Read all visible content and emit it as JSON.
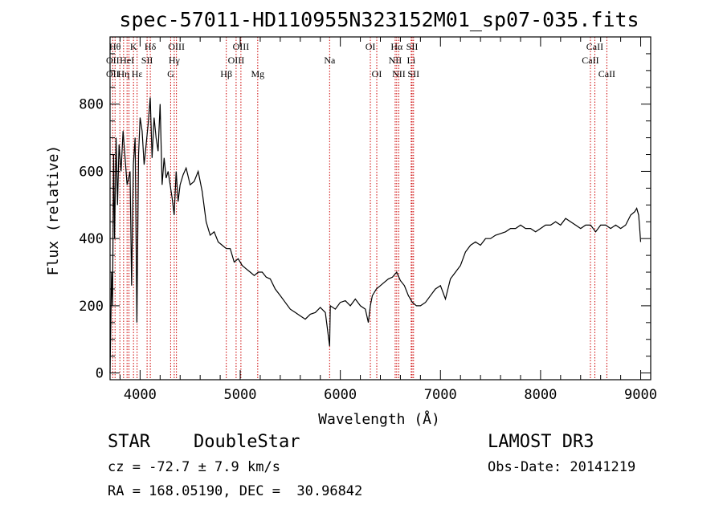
{
  "chart_data": {
    "type": "line",
    "title": "spec-57011-HD110955N323152M01_sp07-035.fits",
    "xlabel": "Wavelength (Å)",
    "ylabel": "Flux (relative)",
    "xlim": [
      3700,
      9100
    ],
    "ylim": [
      -20,
      1000
    ],
    "x_ticks": [
      4000,
      5000,
      6000,
      7000,
      8000,
      9000
    ],
    "y_ticks": [
      0,
      200,
      400,
      600,
      800
    ],
    "x_tick_labels": [
      "4000",
      "5000",
      "6000",
      "7000",
      "8000",
      "9000"
    ],
    "y_tick_labels": [
      "0",
      "200",
      "400",
      "600",
      "800"
    ],
    "grid": false,
    "series": [
      {
        "x": [
          3700,
          3715,
          3725,
          3735,
          3745,
          3760,
          3775,
          3790,
          3810,
          3830,
          3850,
          3870,
          3885,
          3900,
          3915,
          3933,
          3950,
          3968,
          3985,
          4000,
          4020,
          4040,
          4060,
          4080,
          4101,
          4120,
          4140,
          4160,
          4180,
          4200,
          4220,
          4240,
          4260,
          4280,
          4300,
          4320,
          4340,
          4360,
          4380,
          4400,
          4430,
          4460,
          4500,
          4540,
          4580,
          4620,
          4660,
          4700,
          4740,
          4780,
          4820,
          4861,
          4900,
          4940,
          4980,
          5020,
          5060,
          5100,
          5140,
          5180,
          5220,
          5260,
          5300,
          5350,
          5400,
          5450,
          5500,
          5550,
          5600,
          5650,
          5700,
          5750,
          5800,
          5850,
          5893,
          5900,
          5950,
          6000,
          6050,
          6100,
          6150,
          6200,
          6250,
          6280,
          6300,
          6320,
          6360,
          6400,
          6440,
          6480,
          6520,
          6563,
          6600,
          6640,
          6680,
          6720,
          6760,
          6800,
          6850,
          6900,
          6950,
          7000,
          7050,
          7100,
          7150,
          7200,
          7250,
          7300,
          7350,
          7400,
          7450,
          7500,
          7550,
          7600,
          7650,
          7700,
          7750,
          7800,
          7850,
          7900,
          7950,
          8000,
          8050,
          8100,
          8150,
          8200,
          8250,
          8300,
          8350,
          8400,
          8450,
          8500,
          8550,
          8600,
          8650,
          8700,
          8750,
          8800,
          8850,
          8900,
          8940,
          8960,
          8980,
          8990,
          9000
        ],
        "y": [
          0,
          300,
          200,
          650,
          400,
          700,
          500,
          680,
          600,
          720,
          640,
          560,
          580,
          600,
          260,
          620,
          700,
          150,
          650,
          760,
          720,
          620,
          680,
          740,
          820,
          640,
          760,
          700,
          660,
          800,
          560,
          640,
          580,
          600,
          560,
          520,
          470,
          600,
          510,
          560,
          590,
          610,
          560,
          570,
          600,
          540,
          450,
          410,
          420,
          390,
          380,
          370,
          370,
          330,
          340,
          320,
          310,
          300,
          290,
          300,
          300,
          285,
          280,
          250,
          230,
          210,
          190,
          180,
          170,
          160,
          175,
          180,
          195,
          180,
          80,
          200,
          190,
          210,
          215,
          200,
          220,
          200,
          190,
          150,
          200,
          230,
          250,
          260,
          270,
          280,
          285,
          300,
          275,
          260,
          230,
          210,
          200,
          200,
          210,
          230,
          250,
          260,
          220,
          280,
          300,
          320,
          360,
          380,
          390,
          380,
          400,
          400,
          410,
          415,
          420,
          430,
          430,
          440,
          430,
          430,
          420,
          430,
          440,
          440,
          450,
          440,
          460,
          450,
          440,
          430,
          440,
          440,
          420,
          440,
          440,
          430,
          440,
          430,
          440,
          470,
          480,
          490,
          470,
          430,
          390
        ]
      }
    ],
    "line_labels": [
      {
        "text": "Hθ",
        "x": 3750,
        "row": 1
      },
      {
        "text": "OII",
        "x": 3727,
        "row": 2
      },
      {
        "text": "OII",
        "x": 3727,
        "row": 3
      },
      {
        "text": "K",
        "x": 3934,
        "row": 1
      },
      {
        "text": "HeI",
        "x": 3870,
        "row": 2
      },
      {
        "text": "Hη",
        "x": 3835,
        "row": 3
      },
      {
        "text": "Hε",
        "x": 3970,
        "row": 3
      },
      {
        "text": "Hδ",
        "x": 4102,
        "row": 1
      },
      {
        "text": "SII",
        "x": 4070,
        "row": 2
      },
      {
        "text": "OIII",
        "x": 4363,
        "row": 1
      },
      {
        "text": "Hγ",
        "x": 4341,
        "row": 2
      },
      {
        "text": "G",
        "x": 4305,
        "row": 3
      },
      {
        "text": "OIII",
        "x": 5007,
        "row": 1
      },
      {
        "text": "OIII",
        "x": 4959,
        "row": 2
      },
      {
        "text": "Hβ",
        "x": 4861,
        "row": 3
      },
      {
        "text": "Mg",
        "x": 5175,
        "row": 3
      },
      {
        "text": "Na",
        "x": 5893,
        "row": 2
      },
      {
        "text": "OI",
        "x": 6300,
        "row": 1
      },
      {
        "text": "OI",
        "x": 6364,
        "row": 3
      },
      {
        "text": "Hα",
        "x": 6563,
        "row": 1
      },
      {
        "text": "SII",
        "x": 6717,
        "row": 1
      },
      {
        "text": "NII",
        "x": 6548,
        "row": 2
      },
      {
        "text": "Li",
        "x": 6708,
        "row": 2
      },
      {
        "text": "NII",
        "x": 6584,
        "row": 3
      },
      {
        "text": "SII",
        "x": 6731,
        "row": 3
      },
      {
        "text": "CaII",
        "x": 8542,
        "row": 1
      },
      {
        "text": "CaII",
        "x": 8498,
        "row": 2
      },
      {
        "text": "CaII",
        "x": 8662,
        "row": 3
      }
    ],
    "line_markers": [
      3727,
      3750,
      3798,
      3835,
      3870,
      3889,
      3934,
      3970,
      4070,
      4102,
      4305,
      4341,
      4363,
      4861,
      4959,
      5007,
      5175,
      5893,
      6300,
      6364,
      6548,
      6563,
      6584,
      6708,
      6717,
      6731,
      8498,
      8542,
      8662
    ],
    "marker_color": "#cc0000",
    "line_color": "#000000"
  },
  "info": {
    "class_label": "STAR",
    "subclass": "DoubleStar",
    "survey": "LAMOST DR3",
    "cz": "cz = -72.7 ± 7.9 km/s",
    "obs_date": "Obs-Date: 20141219",
    "coords": "RA = 168.05190, DEC =  30.96842"
  }
}
